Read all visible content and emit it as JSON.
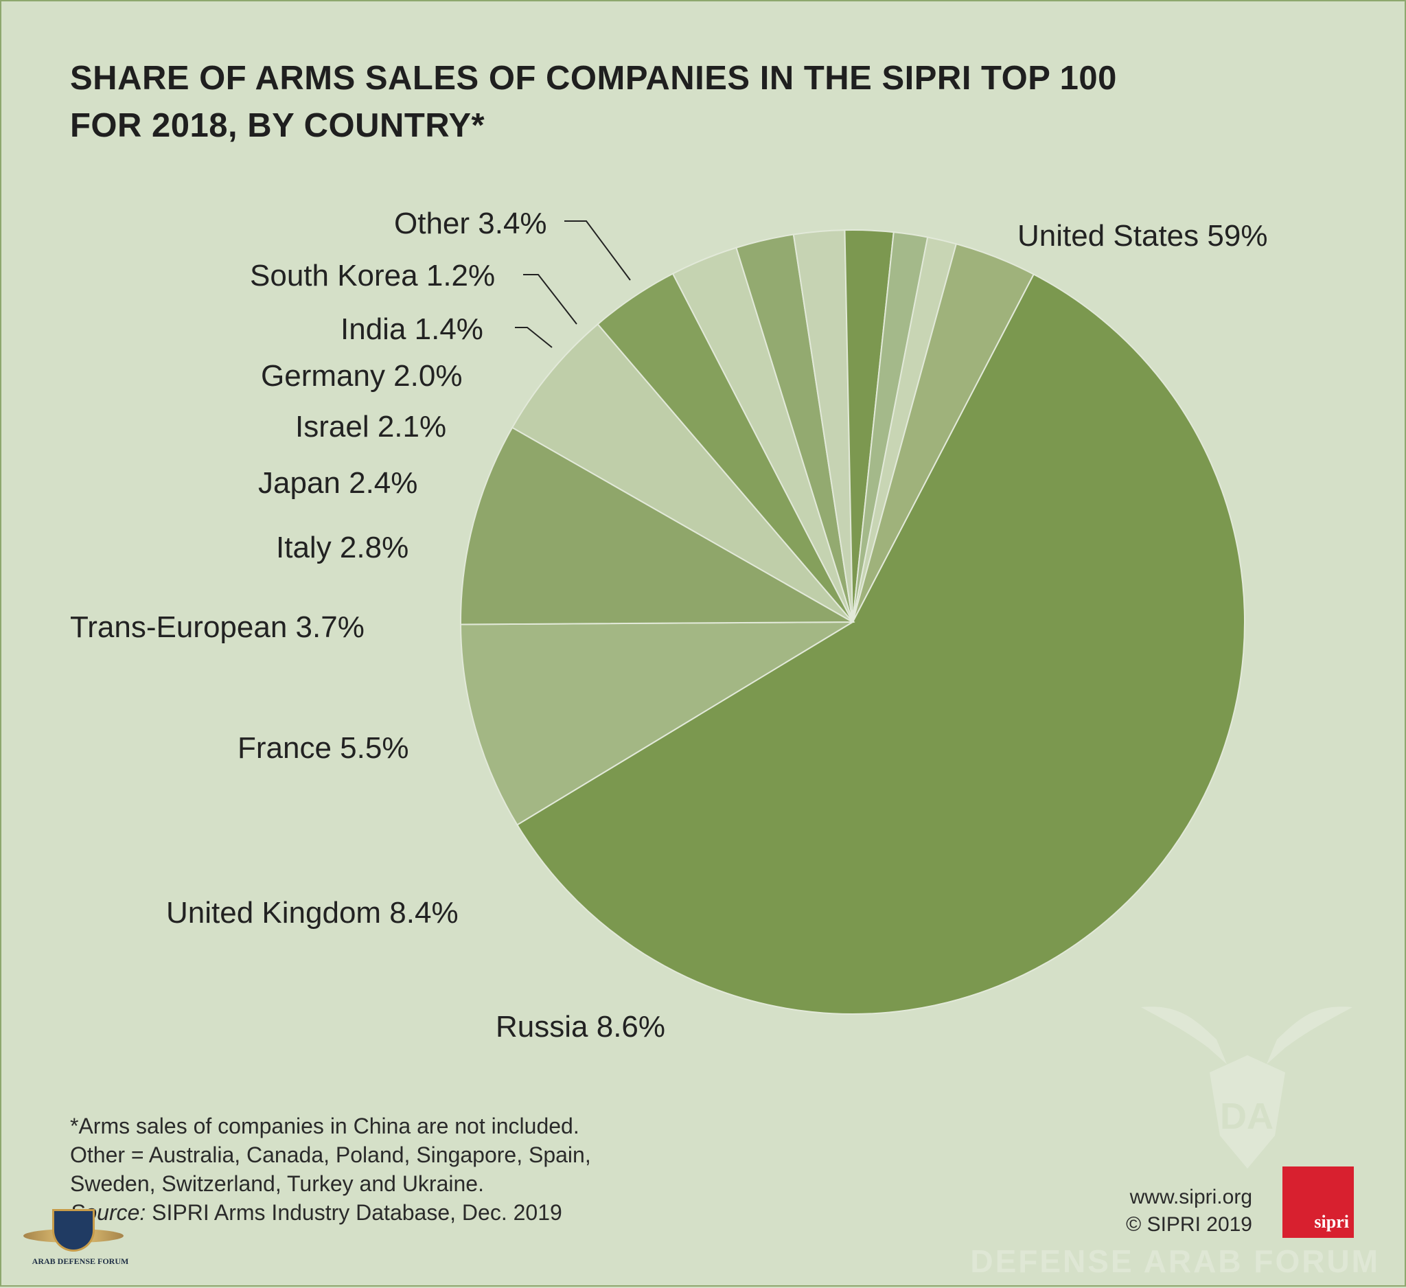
{
  "header": {
    "title_line_1": "SHARE OF ARMS SALES OF COMPANIES IN THE SIPRI TOP 100",
    "title_line_2": "FOR 2018, BY COUNTRY*"
  },
  "chart_data": {
    "type": "pie",
    "title": "SHARE OF ARMS SALES OF COMPANIES IN THE SIPRI TOP 100 FOR 2018, BY COUNTRY*",
    "unit": "%",
    "slices": [
      {
        "label": "United States",
        "value": 59,
        "display": "United States 59%",
        "color": "#7b984f"
      },
      {
        "label": "Russia",
        "value": 8.6,
        "display": "Russia 8.6%",
        "color": "#a3b784"
      },
      {
        "label": "United Kingdom",
        "value": 8.4,
        "display": "United Kingdom 8.4%",
        "color": "#8fa66a"
      },
      {
        "label": "France",
        "value": 5.5,
        "display": "France 5.5%",
        "color": "#bfcea9"
      },
      {
        "label": "Trans-European",
        "value": 3.7,
        "display": "Trans-European 3.7%",
        "color": "#85a05c"
      },
      {
        "label": "Italy",
        "value": 2.8,
        "display": "Italy 2.8%",
        "color": "#c5d3b1"
      },
      {
        "label": "Japan",
        "value": 2.4,
        "display": "Japan 2.4%",
        "color": "#93aa70"
      },
      {
        "label": "Israel",
        "value": 2.1,
        "display": "Israel 2.1%",
        "color": "#c6d3b3"
      },
      {
        "label": "Germany",
        "value": 2.0,
        "display": "Germany 2.0%",
        "color": "#7c9850"
      },
      {
        "label": "India",
        "value": 1.4,
        "display": "India 1.4%",
        "color": "#a4b98a"
      },
      {
        "label": "South Korea",
        "value": 1.2,
        "display": "South Korea 1.2%",
        "color": "#c8d5b4"
      },
      {
        "label": "Other",
        "value": 3.4,
        "display": "Other 3.4%",
        "color": "#9fb27b"
      }
    ]
  },
  "footnotes": {
    "line_1": "*Arms sales of companies in China are not included.",
    "line_2": "Other = Australia, Canada, Poland, Singapore, Spain,",
    "line_3": "Sweden, Switzerland, Turkey and Ukraine.",
    "source_prefix": "Source:",
    "source_text": " SIPRI Arms Industry Database, Dec. 2019"
  },
  "credits": {
    "website": "www.sipri.org",
    "copyright": "© SIPRI 2019",
    "logo_text": "sipri"
  },
  "watermark": {
    "text": "DEFENSE ARAB FORUM",
    "badge_text": "ARAB DEFENSE FORUM"
  }
}
